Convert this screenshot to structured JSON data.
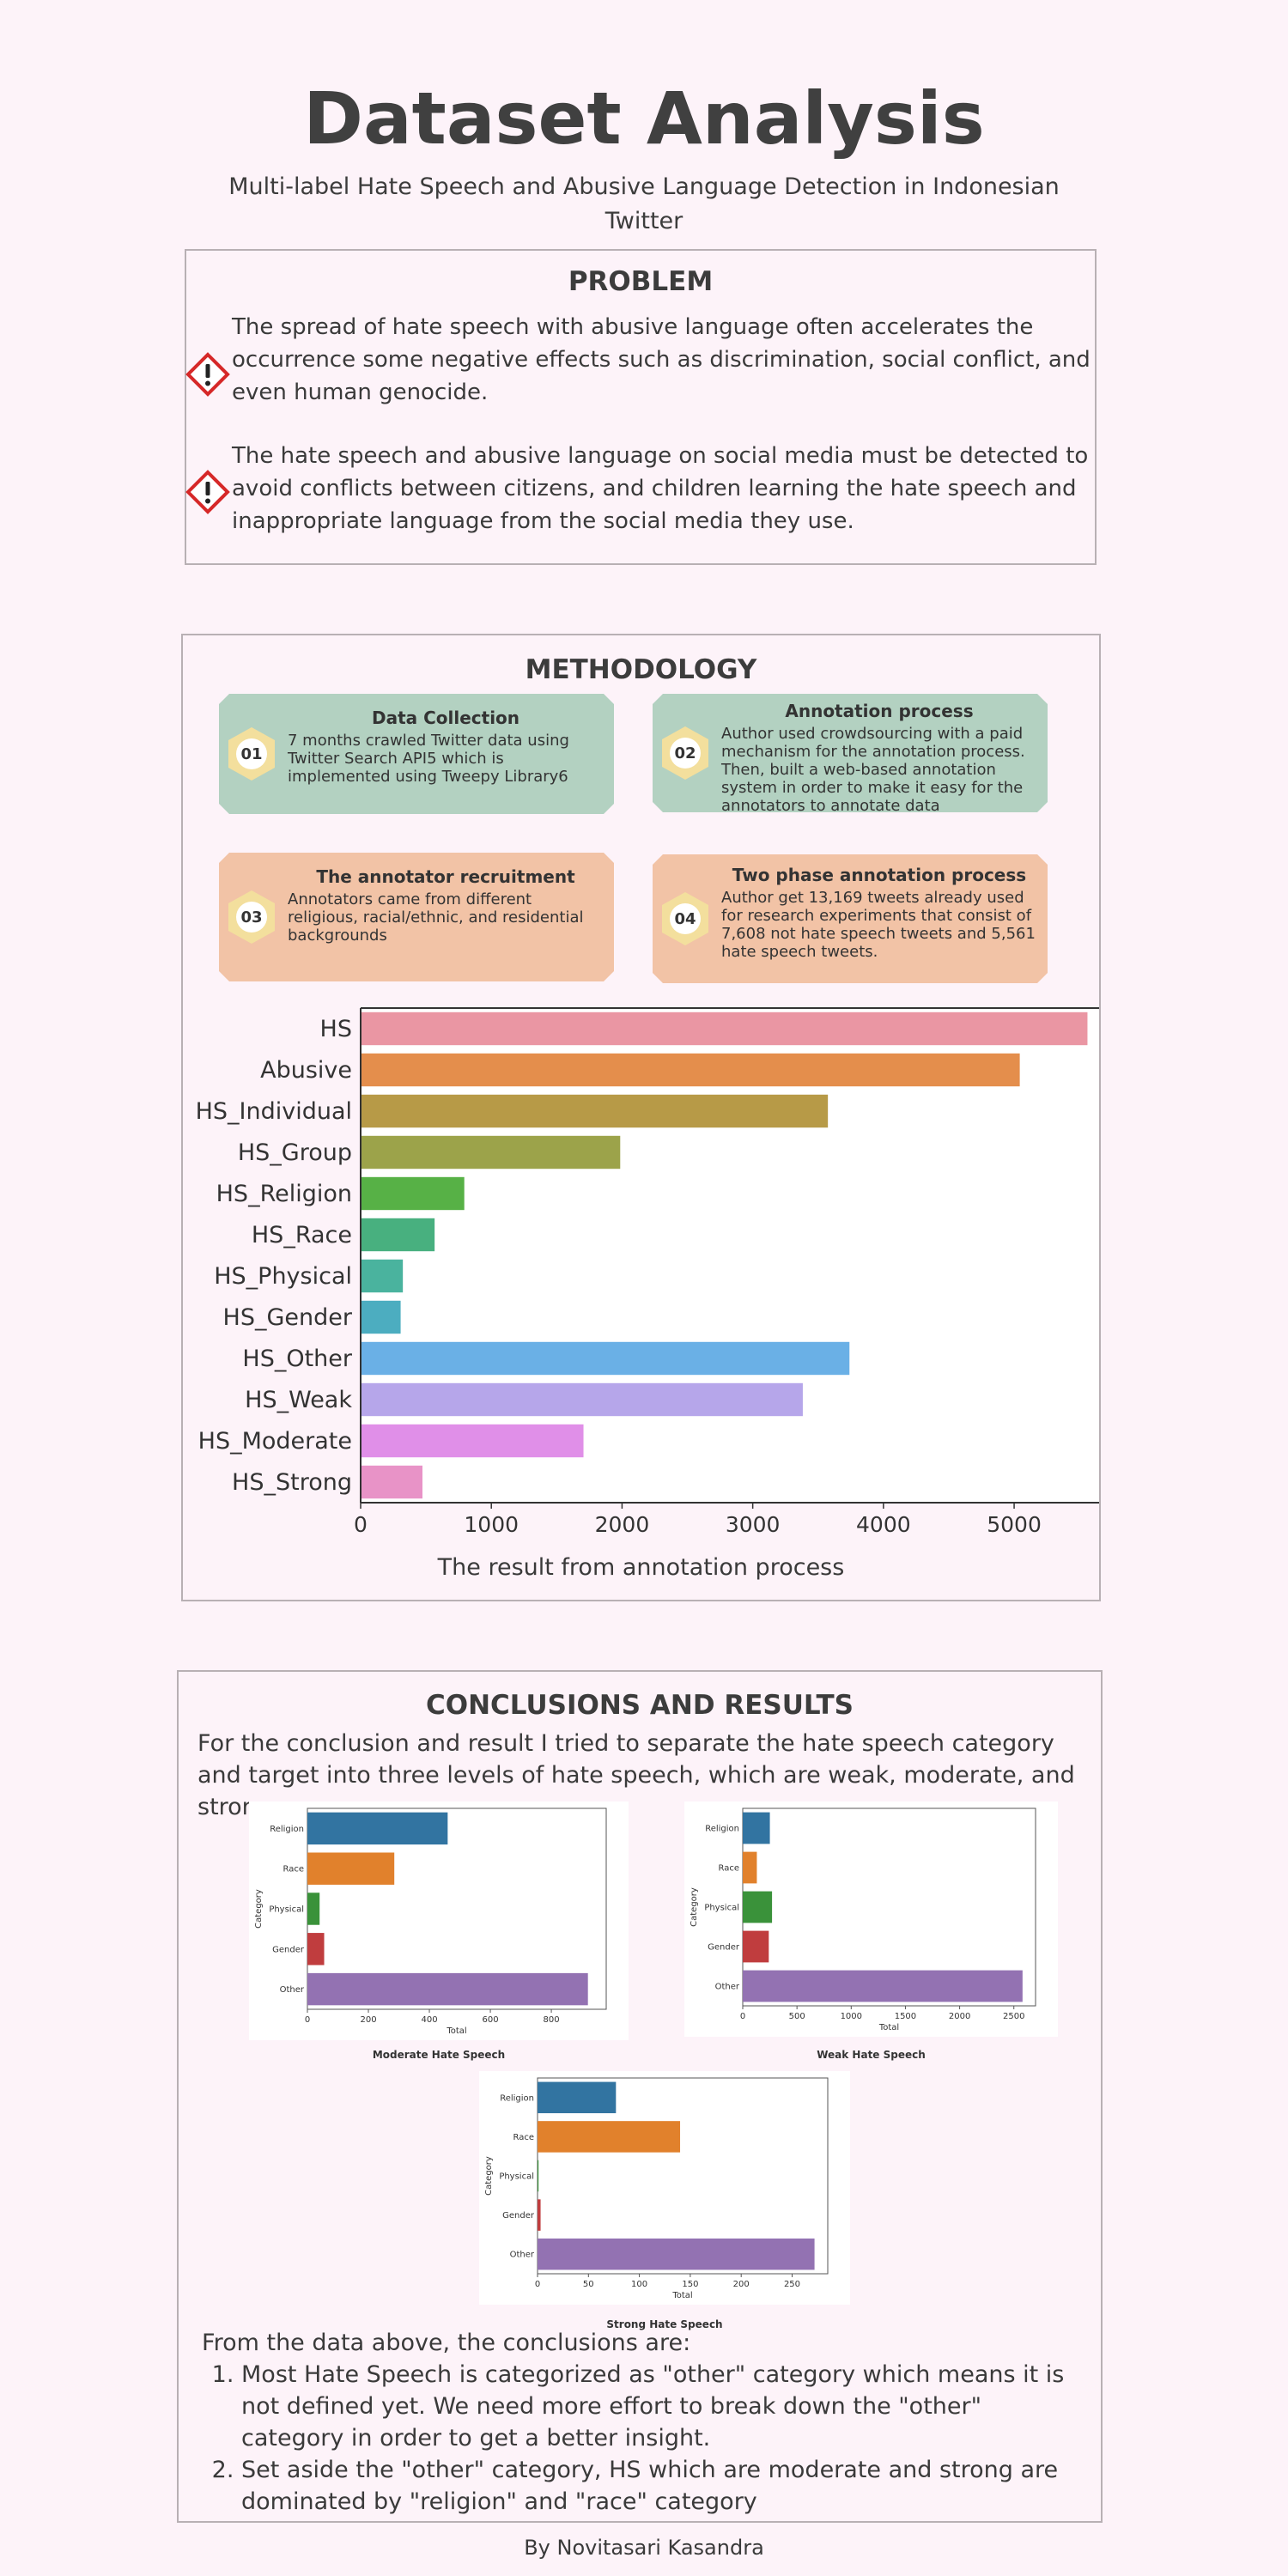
{
  "header": {
    "title": "Dataset Analysis",
    "subtitle": "Multi-label Hate Speech and Abusive Language Detection in Indonesian Twitter"
  },
  "problem": {
    "heading": "PROBLEM",
    "items": [
      "The spread of hate speech with abusive language often accelerates the occurrence some negative effects such as discrimination, social conflict, and even human genocide.",
      "The hate speech and abusive language on social media must be detected to avoid conflicts between citizens, and children learning the hate speech and inappropriate language from the social media they use."
    ],
    "icon": "warning-icon",
    "icon_color": "#d62828"
  },
  "methodology": {
    "heading": "METHODOLOGY",
    "cards": [
      {
        "num": "01",
        "title": "Data Collection",
        "text": "7 months crawled Twitter data using Twitter Search API5 which is implemented using Tweepy Library6"
      },
      {
        "num": "02",
        "title": "Annotation process",
        "text": "Author used crowdsourcing with a paid mechanism for the annotation process. Then, built a web-based annotation system in order to make it easy for the annotators to annotate data"
      },
      {
        "num": "03",
        "title": "The annotator recruitment",
        "text": "Annotators came from different religious, racial/ethnic, and residential backgrounds"
      },
      {
        "num": "04",
        "title": "Two phase annotation process",
        "text": "Author get 13,169 tweets already used for research experiments that consist of 7,608 not hate speech tweets and 5,561 hate speech tweets."
      }
    ],
    "chart_caption": "The result from annotation process"
  },
  "conclusions": {
    "heading": "CONCLUSIONS AND RESULTS",
    "intro": "For the conclusion and result I tried to separate the hate speech category and target  into three levels of hate speech, which are weak, moderate, and strong.",
    "lead": "From the data above, the conclusions are:",
    "points": [
      "Most Hate Speech is categorized as \"other\" category which means it is not defined yet. We need more effort to break down the \"other\" category in order to get a better insight.",
      "Set aside the \"other\" category, HS which are moderate and strong are dominated by \"religion\" and \"race\" category"
    ]
  },
  "footer": "By Novitasari Kasandra",
  "chart_data": [
    {
      "type": "bar",
      "orientation": "horizontal",
      "categories": [
        "HS",
        "Abusive",
        "HS_Individual",
        "HS_Group",
        "HS_Religion",
        "HS_Race",
        "HS_Physical",
        "HS_Gender",
        "HS_Other",
        "HS_Weak",
        "HS_Moderate",
        "HS_Strong"
      ],
      "values": [
        5561,
        5043,
        3575,
        1986,
        793,
        566,
        323,
        306,
        3740,
        3383,
        1705,
        473
      ],
      "colors": [
        "#ea96a3",
        "#e48e4c",
        "#b79a47",
        "#9ca34a",
        "#57b146",
        "#48b07f",
        "#4ab39e",
        "#4cadc0",
        "#6ab0e6",
        "#b6a6ea",
        "#e08fe8",
        "#e893c7"
      ],
      "xlim": [
        0,
        5650
      ],
      "xticks": [
        0,
        1000,
        2000,
        3000,
        4000,
        5000
      ]
    },
    {
      "type": "bar",
      "orientation": "horizontal",
      "title": "Moderate Hate Speech",
      "categories": [
        "Religion",
        "Race",
        "Physical",
        "Gender",
        "Other"
      ],
      "values": [
        460,
        285,
        40,
        55,
        920
      ],
      "colors": [
        "#3274a1",
        "#e1812c",
        "#3a923a",
        "#c03d3e",
        "#9372b2"
      ],
      "xlabel": "Total",
      "ylabel": "Category",
      "xlim": [
        0,
        980
      ],
      "xticks": [
        0,
        200,
        400,
        600,
        800
      ]
    },
    {
      "type": "bar",
      "orientation": "horizontal",
      "title": "Weak Hate Speech",
      "categories": [
        "Religion",
        "Race",
        "Physical",
        "Gender",
        "Other"
      ],
      "values": [
        250,
        130,
        270,
        240,
        2580
      ],
      "colors": [
        "#3274a1",
        "#e1812c",
        "#3a923a",
        "#c03d3e",
        "#9372b2"
      ],
      "xlabel": "Total",
      "ylabel": "Category",
      "xlim": [
        0,
        2700
      ],
      "xticks": [
        0,
        500,
        1000,
        1500,
        2000,
        2500
      ]
    },
    {
      "type": "bar",
      "orientation": "horizontal",
      "title": "Strong Hate Speech",
      "categories": [
        "Religion",
        "Race",
        "Physical",
        "Gender",
        "Other"
      ],
      "values": [
        77,
        140,
        1,
        3,
        272
      ],
      "colors": [
        "#3274a1",
        "#e1812c",
        "#3a923a",
        "#c03d3e",
        "#9372b2"
      ],
      "xlabel": "Total",
      "ylabel": "Category",
      "xlim": [
        0,
        285
      ],
      "xticks": [
        0,
        50,
        100,
        150,
        200,
        250
      ]
    }
  ]
}
